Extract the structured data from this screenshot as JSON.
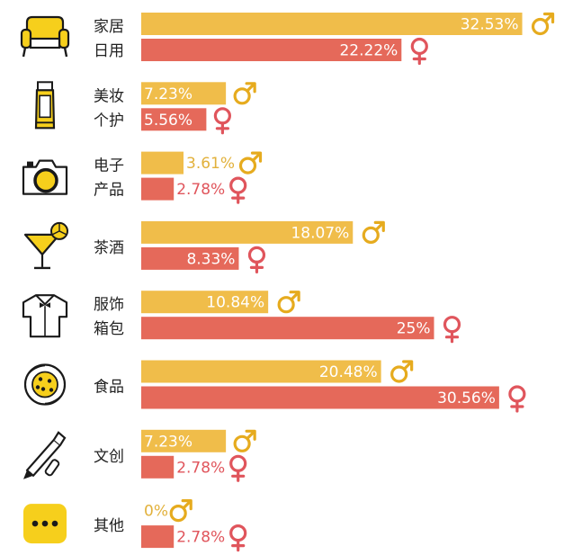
{
  "chart_data": {
    "type": "bar",
    "orientation": "horizontal",
    "grid": false,
    "legend": "none",
    "series": [
      {
        "symbol": "♂",
        "color": "#f0bd4a",
        "symbol_color": "#e6ab1e"
      },
      {
        "symbol": "♀",
        "color": "#e5695a",
        "symbol_color": "#e0555c"
      }
    ],
    "categories": [
      {
        "label": [
          "家居",
          "日用"
        ],
        "icon": "sofa-icon",
        "male": 32.53,
        "male_label": "32.53%",
        "female": 22.22,
        "female_label": "22.22%"
      },
      {
        "label": [
          "美妆",
          "个护"
        ],
        "icon": "cosmetic-tube-icon",
        "male": 7.23,
        "male_label": "7.23%",
        "female": 5.56,
        "female_label": "5.56%"
      },
      {
        "label": [
          "电子",
          "产品"
        ],
        "icon": "camera-icon",
        "male": 3.61,
        "male_label": "3.61%",
        "female": 2.78,
        "female_label": "2.78%"
      },
      {
        "label": [
          "茶酒"
        ],
        "icon": "cocktail-icon",
        "male": 18.07,
        "male_label": "18.07%",
        "female": 8.33,
        "female_label": "8.33%"
      },
      {
        "label": [
          "服饰",
          "箱包"
        ],
        "icon": "shirt-icon",
        "male": 10.84,
        "male_label": "10.84%",
        "female": 25,
        "female_label": "25%"
      },
      {
        "label": [
          "食品"
        ],
        "icon": "pizza-icon",
        "male": 20.48,
        "male_label": "20.48%",
        "female": 30.56,
        "female_label": "30.56%"
      },
      {
        "label": [
          "文创"
        ],
        "icon": "pen-icon",
        "male": 7.23,
        "male_label": "7.23%",
        "female": 2.78,
        "female_label": "2.78%"
      },
      {
        "label": [
          "其他"
        ],
        "icon": "more-dots-icon",
        "male": 0,
        "male_label": "0%",
        "female": 2.78,
        "female_label": "2.78%"
      }
    ]
  }
}
